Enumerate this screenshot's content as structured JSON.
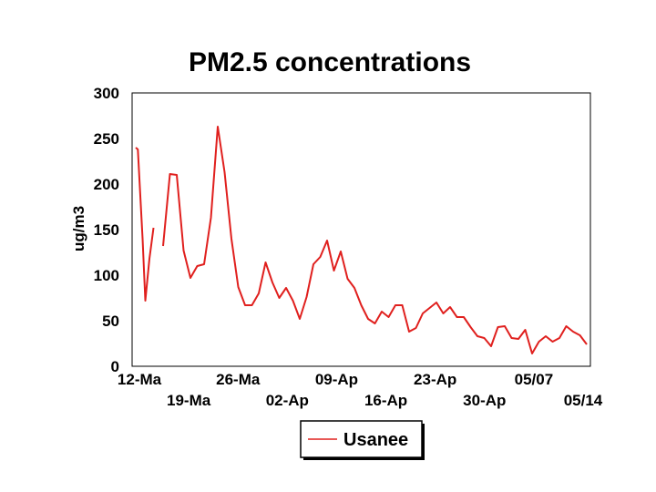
{
  "chart_data": {
    "type": "line",
    "title": "PM2.5 concentrations",
    "xlabel": "",
    "ylabel": "ug/m3",
    "ylim": [
      0,
      300
    ],
    "y_ticks": [
      "0",
      "50",
      "100",
      "150",
      "200",
      "250",
      "300"
    ],
    "x_tick_labels": [
      "12-Ma",
      "19-Ma",
      "26-Ma",
      "02-Ap",
      "09-Ap",
      "16-Ap",
      "23-Ap",
      "30-Ap",
      "05/07",
      "05/14"
    ],
    "grid": false,
    "legend_position": "bottom",
    "series": [
      {
        "name": "Usanee",
        "color": "#e0201e",
        "segments": [
          [
            [
              0,
              240
            ],
            [
              0.3,
              238
            ],
            [
              1,
              140
            ],
            [
              1.4,
              72
            ],
            [
              2,
              118
            ],
            [
              2.6,
              152
            ]
          ],
          [
            [
              4,
              132
            ],
            [
              5,
              211
            ],
            [
              6,
              210
            ],
            [
              7,
              127
            ],
            [
              8,
              97
            ],
            [
              9,
              110
            ],
            [
              10,
              112
            ],
            [
              11,
              163
            ],
            [
              12,
              263
            ],
            [
              13,
              213
            ],
            [
              14,
              140
            ],
            [
              15,
              87
            ],
            [
              16,
              67
            ],
            [
              17,
              67
            ],
            [
              18,
              80
            ],
            [
              19,
              114
            ],
            [
              20,
              92
            ],
            [
              21,
              75
            ],
            [
              22,
              86
            ],
            [
              23,
              72
            ],
            [
              24,
              52
            ],
            [
              25,
              76
            ],
            [
              26,
              112
            ],
            [
              27,
              120
            ],
            [
              28,
              138
            ],
            [
              29,
              105
            ],
            [
              30,
              126
            ],
            [
              31,
              96
            ],
            [
              32,
              86
            ],
            [
              33,
              67
            ],
            [
              34,
              52
            ],
            [
              35,
              47
            ],
            [
              36,
              60
            ],
            [
              37,
              54
            ],
            [
              38,
              67
            ],
            [
              39,
              67
            ],
            [
              40,
              38
            ],
            [
              41,
              42
            ],
            [
              42,
              58
            ],
            [
              43,
              64
            ],
            [
              44,
              70
            ],
            [
              45,
              58
            ],
            [
              46,
              65
            ],
            [
              47,
              54
            ],
            [
              48,
              54
            ],
            [
              49,
              43
            ],
            [
              50,
              33
            ],
            [
              51,
              31
            ],
            [
              52,
              22
            ],
            [
              53,
              43
            ],
            [
              54,
              44
            ],
            [
              55,
              31
            ],
            [
              56,
              30
            ],
            [
              57,
              40
            ],
            [
              58,
              14
            ],
            [
              59,
              27
            ],
            [
              60,
              33
            ],
            [
              61,
              27
            ],
            [
              62,
              31
            ],
            [
              63,
              44
            ],
            [
              64,
              38
            ],
            [
              65,
              34
            ],
            [
              66,
              24
            ]
          ]
        ]
      }
    ]
  }
}
